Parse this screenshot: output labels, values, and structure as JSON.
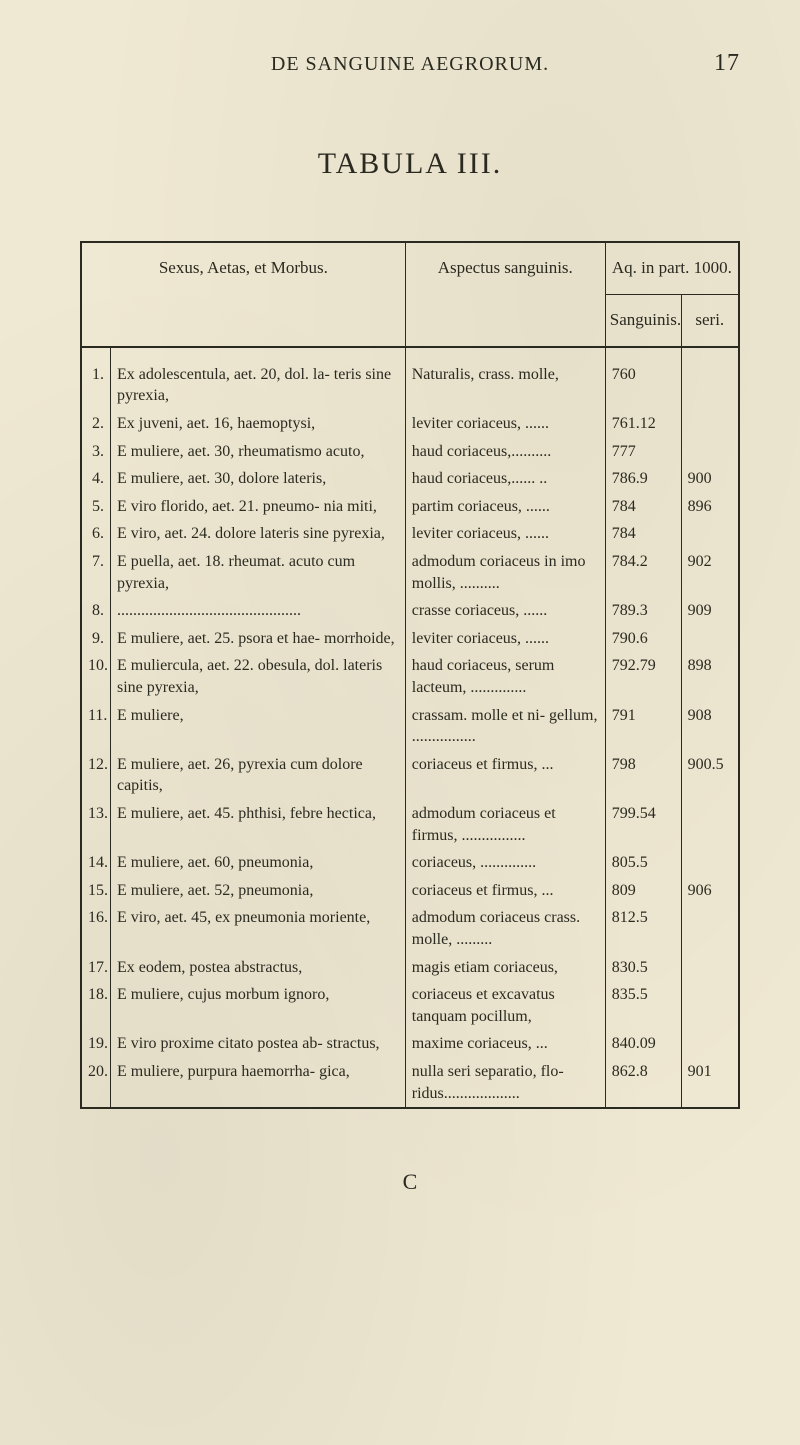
{
  "page": {
    "running_title": "DE SANGUINE AEGRORUM.",
    "number": "17",
    "tabula_title": "TABULA III.",
    "signature": "C"
  },
  "table": {
    "head": {
      "sexus": "Sexus, Aetas, et Morbus.",
      "aspectus": "Aspectus sanguinis.",
      "aq": "Aq. in part. 1000.",
      "sang": "Sanguinis.",
      "seri": "seri."
    },
    "rows": [
      {
        "n": "1.",
        "sexus": "Ex adolescentula, aet. 20, dol. la- teris sine pyrexia,",
        "asp": "Naturalis, crass. molle,",
        "sang": "760",
        "seri": ""
      },
      {
        "n": "2.",
        "sexus": "Ex juveni, aet. 16, haemoptysi,",
        "asp": "leviter coriaceus, ......",
        "sang": "761.12",
        "seri": ""
      },
      {
        "n": "3.",
        "sexus": "E muliere, aet. 30, rheumatismo acuto,",
        "asp": "haud coriaceus,..........",
        "sang": "777",
        "seri": ""
      },
      {
        "n": "4.",
        "sexus": "E muliere, aet. 30, dolore lateris,",
        "asp": "haud coriaceus,...... ..",
        "sang": "786.9",
        "seri": "900"
      },
      {
        "n": "5.",
        "sexus": "E viro florido, aet. 21. pneumo- nia miti,",
        "asp": "partim coriaceus, ......",
        "sang": "784",
        "seri": "896"
      },
      {
        "n": "6.",
        "sexus": "E viro, aet. 24. dolore lateris sine pyrexia,",
        "asp": "leviter coriaceus, ......",
        "sang": "784",
        "seri": ""
      },
      {
        "n": "7.",
        "sexus": "E puella, aet. 18. rheumat. acuto cum pyrexia,",
        "asp": "admodum coriaceus in imo mollis, ..........",
        "sang": "784.2",
        "seri": "902"
      },
      {
        "n": "8.",
        "sexus": "..............................................",
        "asp": "crasse coriaceus, ......",
        "sang": "789.3",
        "seri": "909"
      },
      {
        "n": "9.",
        "sexus": "E muliere, aet. 25. psora et hae- morrhoide,",
        "asp": "leviter coriaceus, ......",
        "sang": "790.6",
        "seri": ""
      },
      {
        "n": "10.",
        "sexus": "E muliercula, aet. 22. obesula, dol. lateris sine pyrexia,",
        "asp": "haud coriaceus, serum lacteum, ..............",
        "sang": "792.79",
        "seri": "898"
      },
      {
        "n": "11.",
        "sexus": "E muliere,",
        "asp": "crassam. molle et ni- gellum, ................",
        "sang": "791",
        "seri": "908"
      },
      {
        "n": "12.",
        "sexus": "E muliere, aet. 26, pyrexia cum dolore capitis,",
        "asp": "coriaceus et firmus, ...",
        "sang": "798",
        "seri": "900.5"
      },
      {
        "n": "13.",
        "sexus": "E muliere, aet. 45. phthisi, febre hectica,",
        "asp": "admodum coriaceus et firmus, ................",
        "sang": "799.54",
        "seri": ""
      },
      {
        "n": "14.",
        "sexus": "E muliere, aet. 60, pneumonia,",
        "asp": "coriaceus, ..............",
        "sang": "805.5",
        "seri": ""
      },
      {
        "n": "15.",
        "sexus": "E muliere, aet. 52, pneumonia,",
        "asp": "coriaceus et firmus, ...",
        "sang": "809",
        "seri": "906"
      },
      {
        "n": "16.",
        "sexus": "E viro, aet. 45, ex pneumonia moriente,",
        "asp": "admodum coriaceus crass. molle, .........",
        "sang": "812.5",
        "seri": ""
      },
      {
        "n": "17.",
        "sexus": "Ex eodem, postea abstractus,",
        "asp": "magis etiam coriaceus,",
        "sang": "830.5",
        "seri": ""
      },
      {
        "n": "18.",
        "sexus": "E muliere, cujus morbum ignoro,",
        "asp": "coriaceus et excavatus tanquam pocillum,",
        "sang": "835.5",
        "seri": ""
      },
      {
        "n": "19.",
        "sexus": "E viro proxime citato postea ab- stractus,",
        "asp": "maxime coriaceus, ...",
        "sang": "840.09",
        "seri": ""
      },
      {
        "n": "20.",
        "sexus": "E muliere, purpura haemorrha- gica,",
        "asp": "nulla seri separatio, flo- ridus...................",
        "sang": "862.8",
        "seri": "901"
      }
    ]
  },
  "style": {
    "background_color": "#efe8d2",
    "text_color": "#2a2a20",
    "border_color": "#2a2a20",
    "body_fontsize": 16,
    "title_fontsize": 30
  }
}
